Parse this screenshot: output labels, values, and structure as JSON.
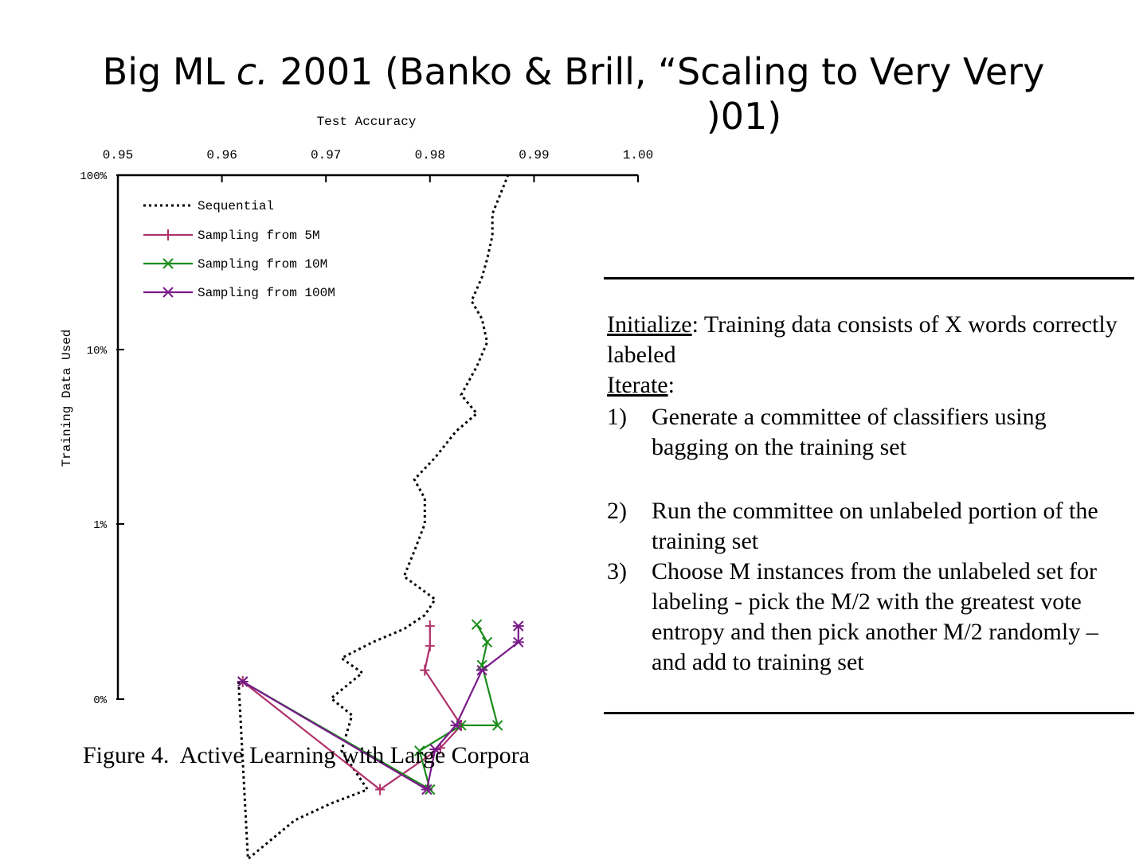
{
  "title": {
    "line1_pre": "Big ML ",
    "line1_em": "c.",
    "line1_post": " 2001 (Banko & Brill, “Scaling to Very Very",
    "line2_fragment": ")01)"
  },
  "chart_data": {
    "type": "line",
    "title": "Test Accuracy",
    "xlabel": "Test Accuracy",
    "ylabel": "Training Data Used",
    "x_ticks": [
      "0.95",
      "0.96",
      "0.97",
      "0.98",
      "0.99",
      "1.00"
    ],
    "x_tick_values": [
      0.95,
      0.96,
      0.97,
      0.98,
      0.99,
      1.0
    ],
    "y_ticks": [
      "100%",
      "10%",
      "1%",
      "0%"
    ],
    "xlim": [
      0.95,
      1.0
    ],
    "y_scale": "log",
    "legend_position": "top-left",
    "grid": false,
    "series": [
      {
        "name": "Sequential",
        "color": "#000000",
        "style": "dotted",
        "points": [
          [
            0.9616,
            0.01
          ],
          [
            0.9625,
            0.012
          ],
          [
            0.967,
            0.02
          ],
          [
            0.9705,
            0.025
          ],
          [
            0.974,
            0.03
          ],
          [
            0.9715,
            0.05
          ],
          [
            0.9725,
            0.08
          ],
          [
            0.9705,
            0.1
          ],
          [
            0.9735,
            0.14
          ],
          [
            0.9715,
            0.17
          ],
          [
            0.9745,
            0.21
          ],
          [
            0.9775,
            0.25
          ],
          [
            0.9795,
            0.3
          ],
          [
            0.9805,
            0.37
          ],
          [
            0.9775,
            0.5
          ],
          [
            0.9785,
            0.7
          ],
          [
            0.9795,
            1.0
          ],
          [
            0.9795,
            1.4
          ],
          [
            0.9785,
            1.8
          ],
          [
            0.9805,
            2.4
          ],
          [
            0.9825,
            3.4
          ],
          [
            0.9845,
            4.3
          ],
          [
            0.983,
            5.5
          ],
          [
            0.9845,
            8.0
          ],
          [
            0.9855,
            11.0
          ],
          [
            0.985,
            15.0
          ],
          [
            0.984,
            19.0
          ],
          [
            0.985,
            26.0
          ],
          [
            0.9855,
            33.0
          ],
          [
            0.986,
            45.0
          ],
          [
            0.986,
            60.0
          ],
          [
            0.9875,
            100.0
          ]
        ]
      },
      {
        "name": "Sampling from 5M",
        "color": "#b0306a",
        "style": "solid",
        "points": [
          [
            0.962,
            0.01
          ],
          [
            0.9752,
            0.03
          ],
          [
            0.981,
            0.052
          ],
          [
            0.983,
            0.07
          ],
          [
            0.9795,
            0.145
          ],
          [
            0.98,
            0.2
          ],
          [
            0.98,
            0.26
          ]
        ]
      },
      {
        "name": "Sampling from 10M",
        "color": "#1a8c1a",
        "style": "solid",
        "points": [
          [
            0.962,
            0.01
          ],
          [
            0.98,
            0.03
          ],
          [
            0.979,
            0.05
          ],
          [
            0.983,
            0.07
          ],
          [
            0.9865,
            0.07
          ],
          [
            0.985,
            0.155
          ],
          [
            0.9855,
            0.21
          ],
          [
            0.9845,
            0.265
          ]
        ]
      },
      {
        "name": "Sampling from 100M",
        "color": "#7a1a8a",
        "style": "solid",
        "points": [
          [
            0.962,
            0.01
          ],
          [
            0.9797,
            0.03
          ],
          [
            0.9805,
            0.051
          ],
          [
            0.9825,
            0.07
          ],
          [
            0.985,
            0.145
          ],
          [
            0.9885,
            0.21
          ],
          [
            0.9885,
            0.26
          ]
        ]
      }
    ],
    "caption": "Figure 4.  Active Learning with Large Corpora"
  },
  "algorithm": {
    "initialize_label": "Initialize",
    "initialize_text": ": Training data consists of X words correctly labeled",
    "iterate_label": "Iterate",
    "iterate_colon": ":",
    "steps": [
      {
        "num": "1)",
        "text": "Generate a committee of classifiers using bagging on the training set"
      },
      {
        "num": "2)",
        "text": "Run the committee on unlabeled portion of the training set"
      },
      {
        "num": "3)",
        "text": "Choose M instances from the unlabeled set for labeling - pick the M/2 with the greatest vote entropy and then pick another M/2 randomly – and add to training set"
      }
    ]
  }
}
